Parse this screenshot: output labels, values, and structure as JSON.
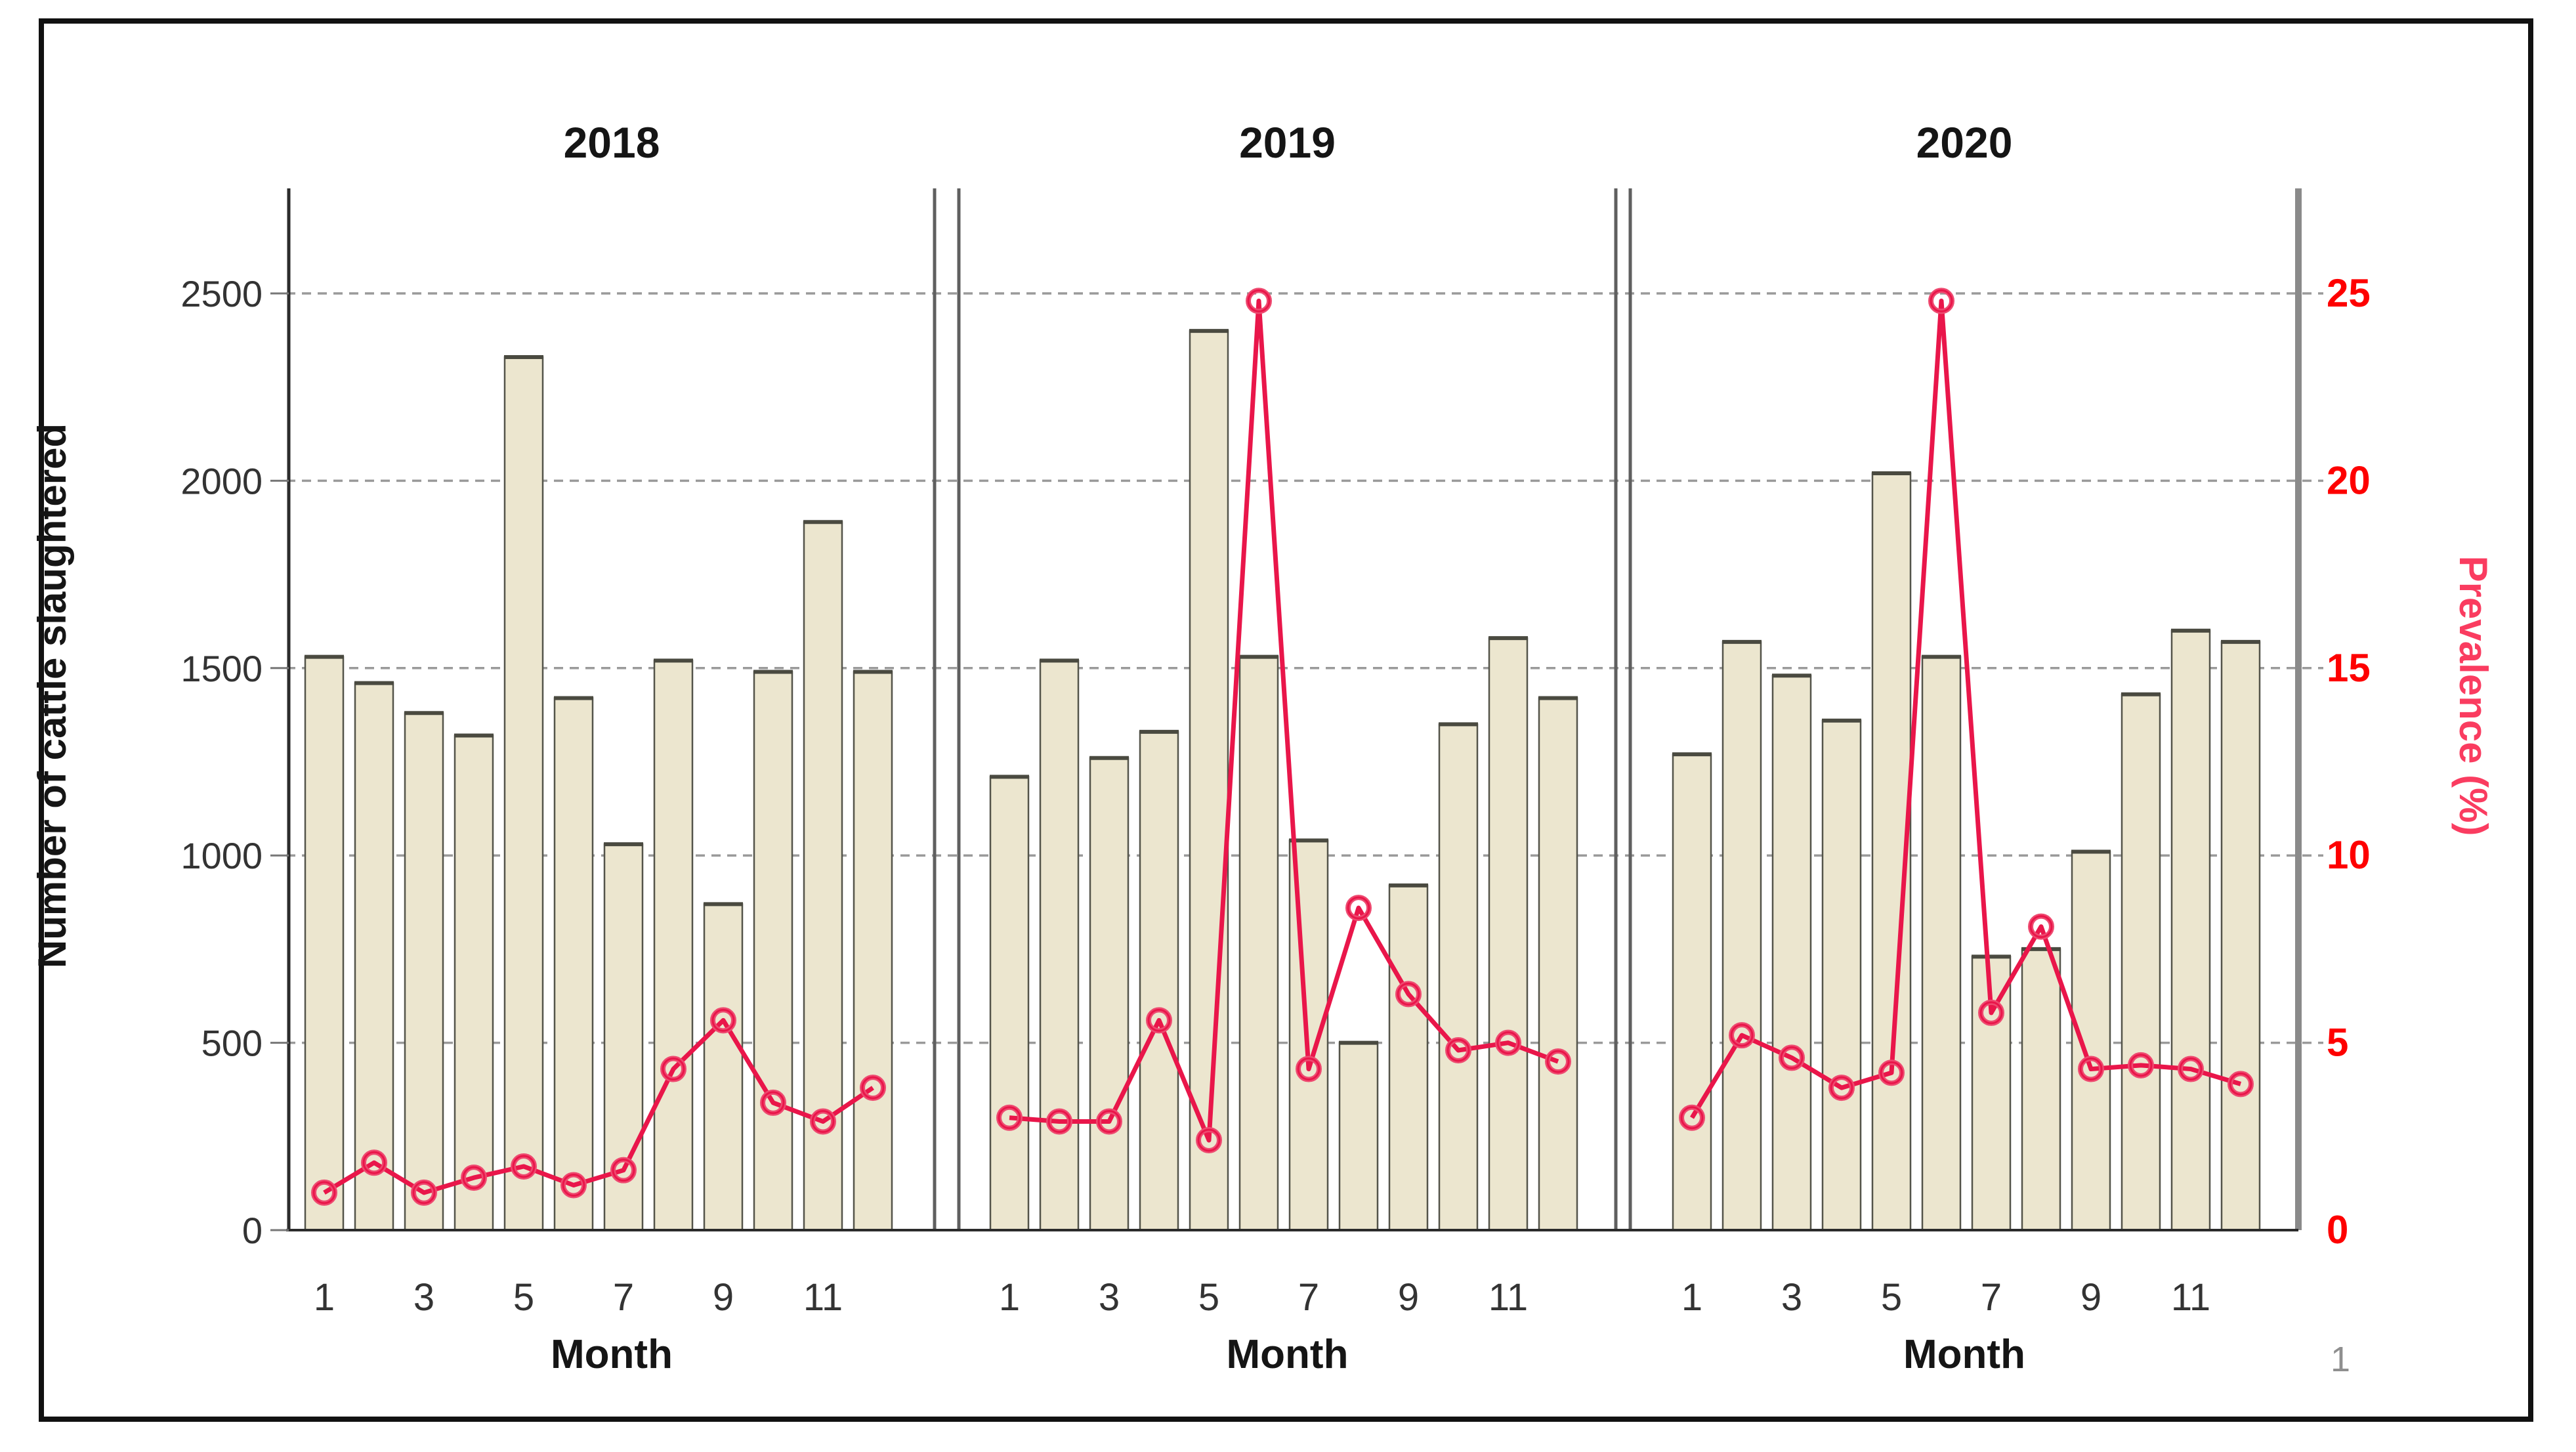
{
  "page": {
    "number": "1"
  },
  "chart_data": {
    "type": "bar",
    "subtype": "paneled-combo-bar-line",
    "panel_variable": "Year",
    "x_axis": {
      "label": "Month",
      "months": [
        1,
        2,
        3,
        4,
        5,
        6,
        7,
        8,
        9,
        10,
        11,
        12
      ],
      "tick_months": [
        1,
        3,
        5,
        7,
        9,
        11
      ],
      "tick_labels": [
        "1",
        "3",
        "5",
        "7",
        "9",
        "11"
      ]
    },
    "left_axis": {
      "label": "Number of cattle slaughtered",
      "ticks": [
        0,
        500,
        1000,
        1500,
        2000,
        2500
      ],
      "tick_order_top_down": [
        2500,
        2000,
        1500,
        1000,
        500,
        0
      ],
      "range": [
        0,
        2750
      ],
      "applies_to": "bars"
    },
    "right_axis": {
      "label": "Prevalence (%)",
      "ticks": [
        0,
        5,
        10,
        15,
        20,
        25
      ],
      "tick_order_top_down": [
        25,
        20,
        15,
        10,
        5,
        0
      ],
      "range": [
        0,
        27.5
      ],
      "applies_to": "line"
    },
    "grid": "horizontal-dashed",
    "legend_position": "none",
    "panels": [
      {
        "year": "2018",
        "cattle_slaughtered": [
          1530,
          1460,
          1380,
          1320,
          2330,
          1420,
          1030,
          1520,
          870,
          1490,
          1890,
          1490
        ],
        "prevalence_pct": [
          1.0,
          1.8,
          1.0,
          1.4,
          1.7,
          1.2,
          1.6,
          4.3,
          5.6,
          3.4,
          2.9,
          3.8
        ]
      },
      {
        "year": "2019",
        "cattle_slaughtered": [
          1210,
          1520,
          1260,
          1330,
          2400,
          1530,
          1040,
          500,
          920,
          1350,
          1580,
          1420
        ],
        "prevalence_pct": [
          3.0,
          2.9,
          2.9,
          5.6,
          2.4,
          24.8,
          4.3,
          8.6,
          6.3,
          4.8,
          5.0,
          4.5
        ]
      },
      {
        "year": "2020",
        "cattle_slaughtered": [
          1270,
          1570,
          1480,
          1360,
          2020,
          1530,
          730,
          750,
          1010,
          1430,
          1600,
          1570
        ],
        "prevalence_pct": [
          3.0,
          5.2,
          4.6,
          3.8,
          4.2,
          24.8,
          5.8,
          8.1,
          4.3,
          4.4,
          4.3,
          3.9
        ]
      }
    ],
    "colors": {
      "bar_fill": "#ece6cf",
      "bar_border": "#54544a",
      "bar_cap": "#4a4a40",
      "line": "#e9164a",
      "marker_ring": "#ee4a70",
      "grid": "#9a9a9a",
      "axis_text": "#333333",
      "title_text": "#151515",
      "right_axis_tick_text": "#fe0000",
      "right_axis_label_text": "#fa3c60",
      "frame": "#5f5f5f",
      "page_number": "#8f8f8f"
    }
  }
}
